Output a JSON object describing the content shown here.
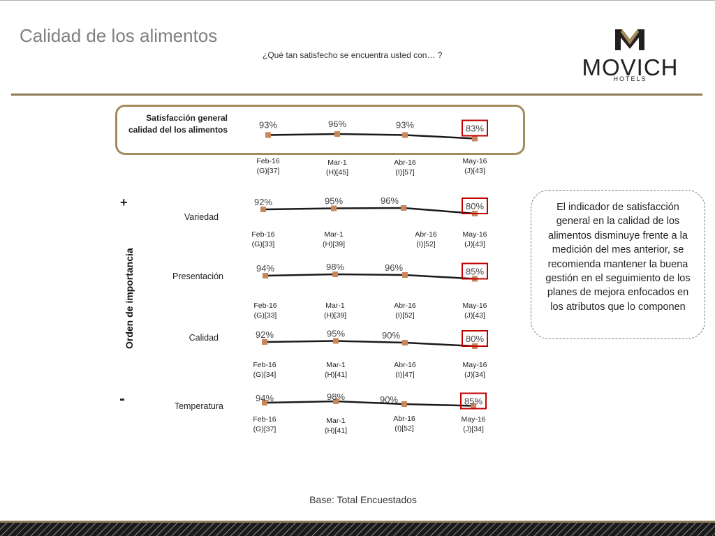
{
  "header": {
    "title": "Calidad de los alimentos",
    "subtitle": "¿Qué tan satisfecho se encuentra usted con… ?",
    "logo_word": "MOVICH",
    "logo_sub": "HOTELS"
  },
  "axis": {
    "title": "Orden de importancia",
    "plus": "+",
    "minus": "-"
  },
  "rows": [
    {
      "label_line1": "Satisfacción general",
      "label_line2": "calidad del los alimentos"
    },
    {
      "label": "Variedad"
    },
    {
      "label": "Presentación"
    },
    {
      "label": "Calidad"
    },
    {
      "label": "Temperatura"
    }
  ],
  "note": "El indicador de satisfacción general en la calidad de los alimentos disminuye frente a la medición del mes anterior, se recomienda mantener la buena gestión en el seguimiento de los planes de mejora enfocados en los atributos que lo componen",
  "footer": "Base: Total Encuestados",
  "colors": {
    "line": "#1a1a1a",
    "marker": "#c8865a",
    "highlight_box": "#c00000",
    "gold": "#8c7a55"
  },
  "chart_data": [
    {
      "type": "line",
      "title": "Satisfacción general calidad del los alimentos",
      "categories": [
        "Feb-16",
        "Mar-1",
        "Abr-16",
        "May-16"
      ],
      "bases": [
        "(G)[37]",
        "(H)[45]",
        "(I)[57]",
        "(J)[43]"
      ],
      "values": [
        93,
        96,
        93,
        83
      ],
      "value_labels": [
        "93%",
        "96%",
        "93%",
        "83%"
      ],
      "highlight_index": 3
    },
    {
      "type": "line",
      "title": "Variedad",
      "categories": [
        "Feb-16",
        "Mar-1",
        "Abr-16",
        "May-16"
      ],
      "bases": [
        "(G)[33]",
        "(H)[39]",
        "(I)[52]",
        "(J)[43]"
      ],
      "values": [
        92,
        95,
        96,
        80
      ],
      "value_labels": [
        "92%",
        "95%",
        "96%",
        "80%"
      ],
      "highlight_index": 3
    },
    {
      "type": "line",
      "title": "Presentación",
      "categories": [
        "Feb-16",
        "Mar-1",
        "Abr-16",
        "May-16"
      ],
      "bases": [
        "(G)[33]",
        "(H)[39]",
        "(I)[52]",
        "(J)[43]"
      ],
      "values": [
        94,
        98,
        96,
        85
      ],
      "value_labels": [
        "94%",
        "98%",
        "96%",
        "85%"
      ],
      "highlight_index": 3
    },
    {
      "type": "line",
      "title": "Calidad",
      "categories": [
        "Feb-16",
        "Mar-1",
        "Abr-16",
        "May-16"
      ],
      "bases": [
        "(G)[34]",
        "(H)[41]",
        "(I)[47]",
        "(J)[34]"
      ],
      "values": [
        92,
        95,
        90,
        80
      ],
      "value_labels": [
        "92%",
        "95%",
        "90%",
        "80%"
      ],
      "highlight_index": 3
    },
    {
      "type": "line",
      "title": "Temperatura",
      "categories": [
        "Feb-16",
        "Mar-1",
        "Abr-16",
        "May-16"
      ],
      "bases": [
        "(G)[37]",
        "(H)[41]",
        "(I)[52]",
        "(J)[34]"
      ],
      "values": [
        94,
        98,
        90,
        85
      ],
      "value_labels": [
        "94%",
        "98%",
        "90%",
        "85%"
      ],
      "highlight_index": 3
    }
  ]
}
